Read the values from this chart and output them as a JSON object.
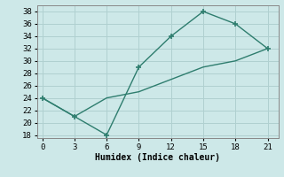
{
  "line1_x": [
    0,
    3,
    6,
    9,
    12,
    15,
    18,
    21
  ],
  "line1_y": [
    24,
    21,
    18,
    29,
    34,
    38,
    36,
    32
  ],
  "line2_x": [
    0,
    3,
    6,
    9,
    12,
    15,
    18,
    21
  ],
  "line2_y": [
    24,
    21,
    24,
    25,
    27,
    29,
    30,
    32
  ],
  "line_color": "#2e7d6e",
  "bg_color": "#cde8e8",
  "grid_color": "#b0d0d0",
  "xlabel": "Humidex (Indice chaleur)",
  "xlim": [
    -0.5,
    22
  ],
  "ylim": [
    17.5,
    39
  ],
  "xticks": [
    0,
    3,
    6,
    9,
    12,
    15,
    18,
    21
  ],
  "yticks": [
    18,
    20,
    22,
    24,
    26,
    28,
    30,
    32,
    34,
    36,
    38
  ]
}
